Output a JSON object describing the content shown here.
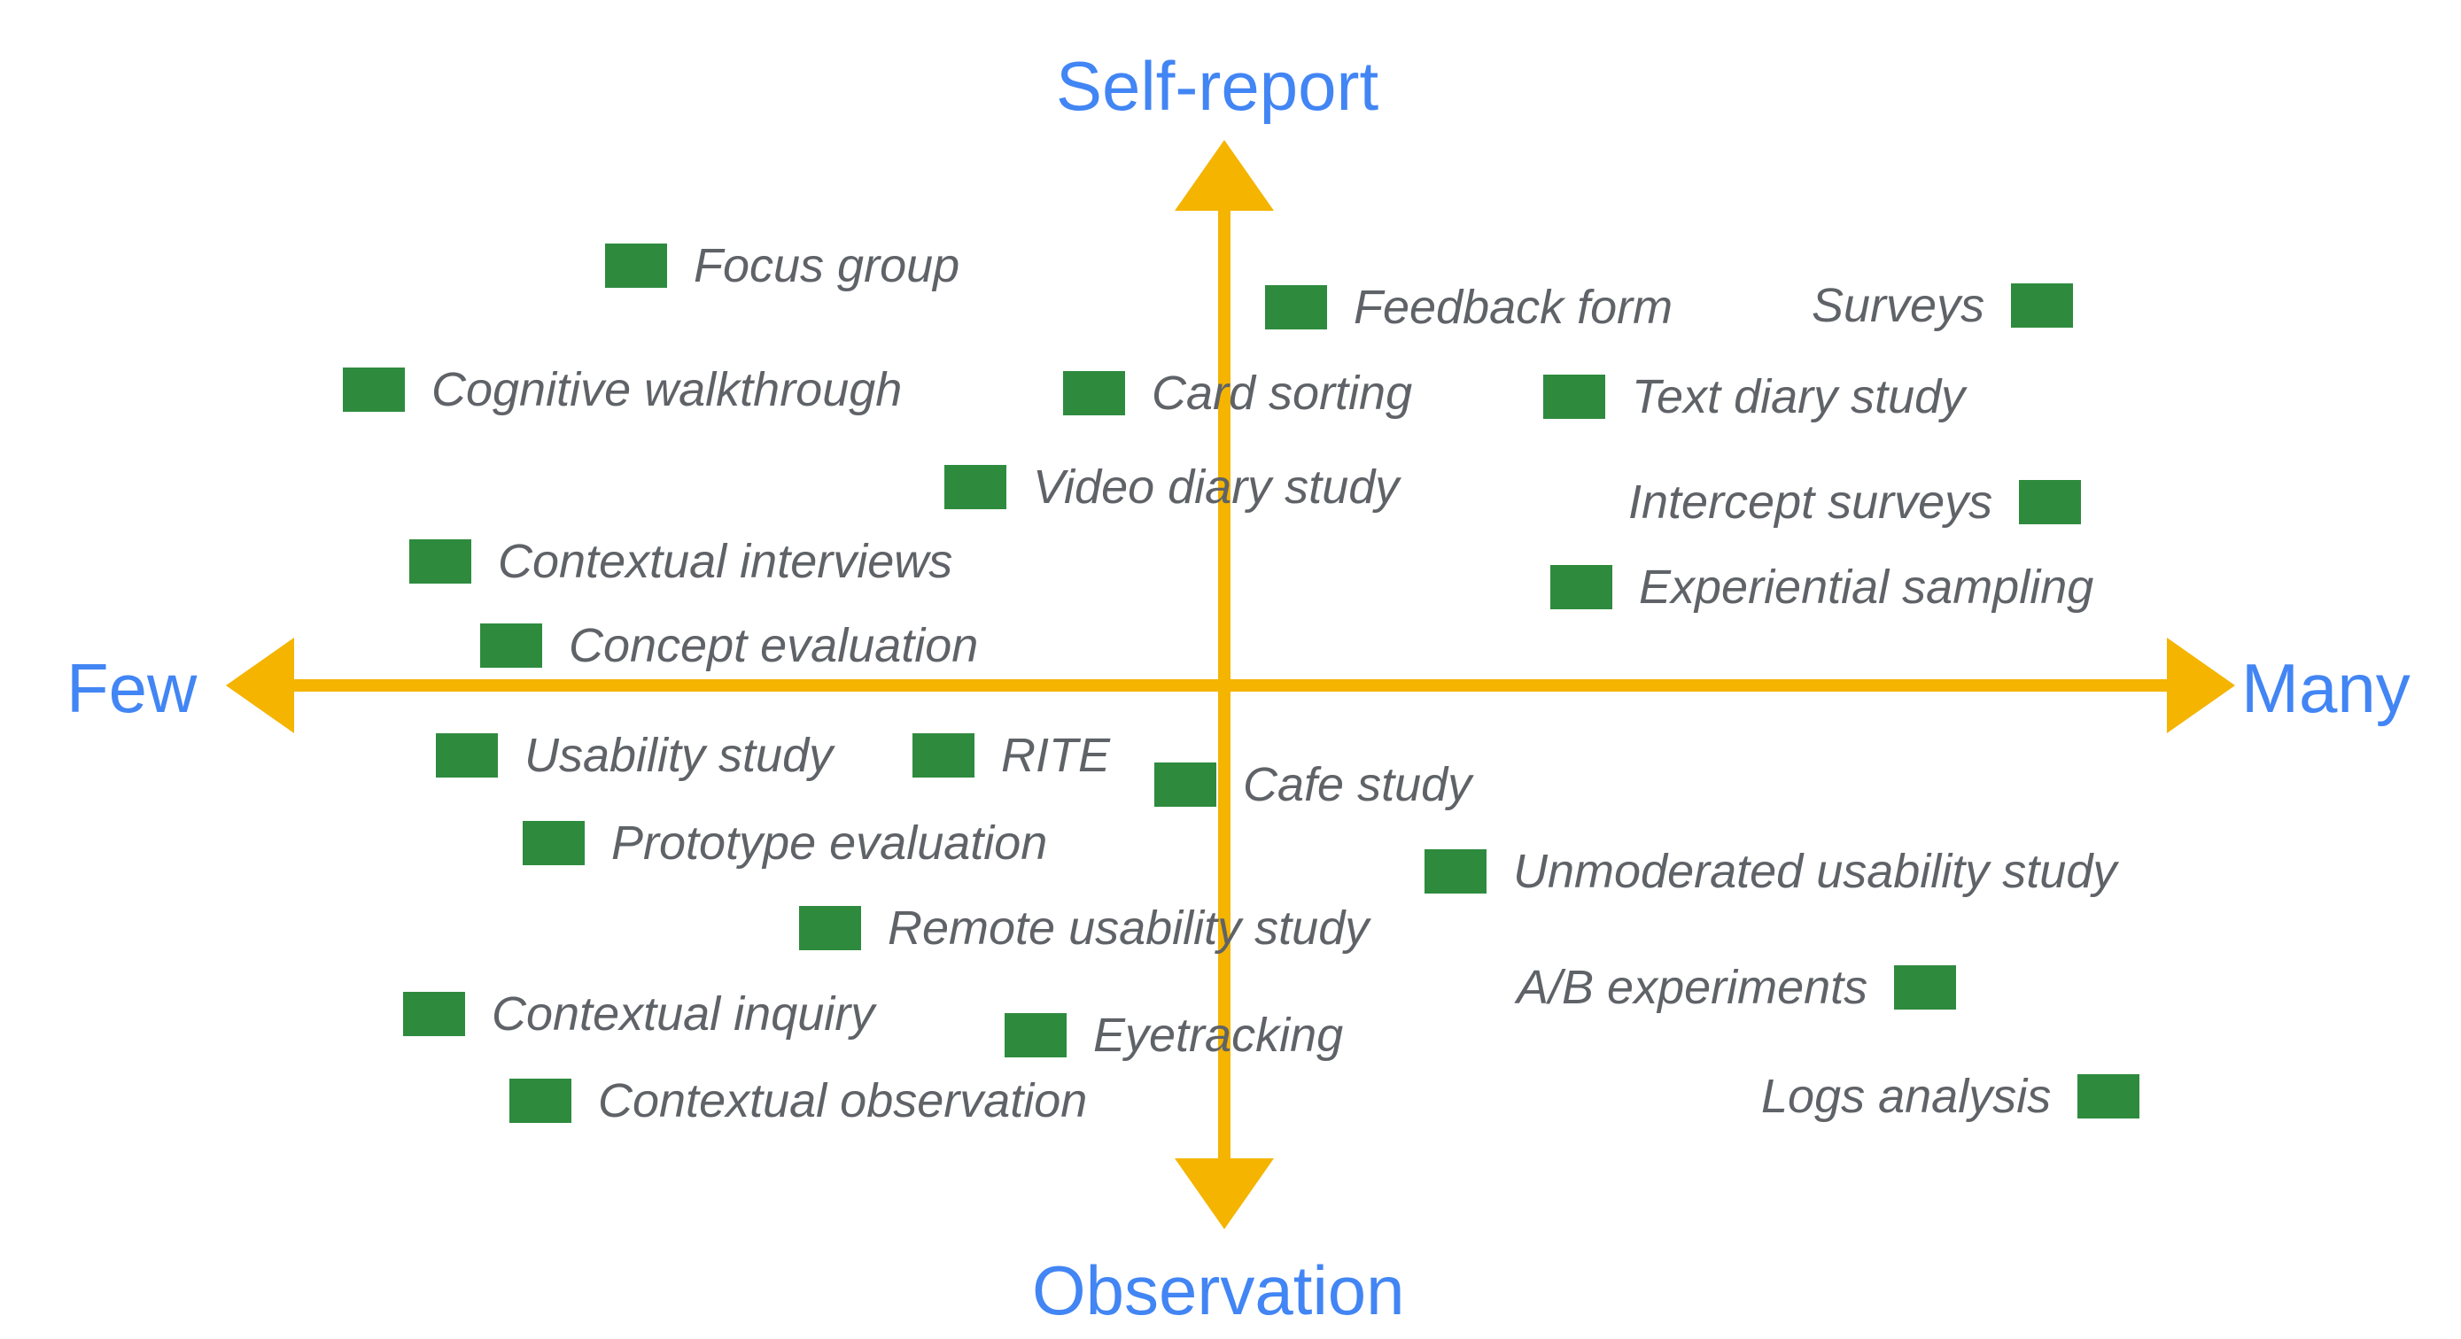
{
  "colors": {
    "axis": "#f4b400",
    "axis_label": "#4285f4",
    "marker": "#2e8b3e",
    "item_text": "#5f6368"
  },
  "axes": {
    "top": "Self-report",
    "bottom": "Observation",
    "left": "Few",
    "right": "Many"
  },
  "items": {
    "focus_group": "Focus group",
    "feedback_form": "Feedback form",
    "surveys": "Surveys",
    "cognitive_walkthrough": "Cognitive walkthrough",
    "card_sorting": "Card sorting",
    "text_diary_study": "Text diary study",
    "video_diary_study": "Video diary study",
    "intercept_surveys": "Intercept surveys",
    "contextual_interviews": "Contextual interviews",
    "experiential_sampling": "Experiential sampling",
    "concept_evaluation": "Concept evaluation",
    "usability_study": "Usability study",
    "rite": "RITE",
    "cafe_study": "Cafe study",
    "prototype_evaluation": "Prototype evaluation",
    "unmoderated_usability_study": "Unmoderated usability study",
    "remote_usability_study": "Remote usability study",
    "ab_experiments": "A/B experiments",
    "contextual_inquiry": "Contextual inquiry",
    "eyetracking": "Eyetracking",
    "logs_analysis": "Logs analysis",
    "contextual_observation": "Contextual observation"
  }
}
